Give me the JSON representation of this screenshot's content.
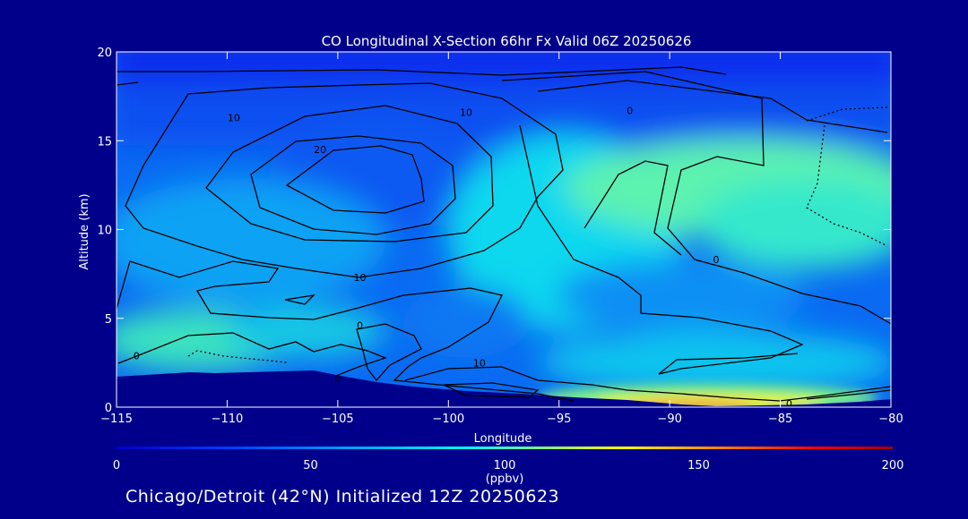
{
  "chart_data": {
    "type": "contour",
    "title": "CO Longitudinal X-Section 66hr  Fx Valid 06Z 20250626",
    "xlabel": "Longitude",
    "ylabel": "Altitude (km)",
    "x_ticks": [
      "−115",
      "−110",
      "−105",
      "−100",
      "−95",
      "−90",
      "−85",
      "−80"
    ],
    "x_values": [
      -115,
      -110,
      -105,
      -100,
      -95,
      -90,
      -85,
      -80
    ],
    "y_ticks": [
      "0",
      "5",
      "10",
      "15",
      "20"
    ],
    "y_values": [
      0,
      5,
      10,
      15,
      20
    ],
    "xlim": [
      -115,
      -80
    ],
    "ylim": [
      0,
      20
    ],
    "colorbar": {
      "ticks": [
        "0",
        "50",
        "100",
        "150",
        "200"
      ],
      "values": [
        0,
        50,
        100,
        150,
        200
      ],
      "unit_label": "(ppbv)",
      "colors": [
        "#0000c8",
        "#0040ff",
        "#00a0ff",
        "#00ffff",
        "#80ff80",
        "#ffff00",
        "#ff8000",
        "#ff0000",
        "#a00000"
      ]
    },
    "contour_labels": [
      {
        "text": "10",
        "lon": -109.7,
        "alt": 16.3
      },
      {
        "text": "20",
        "lon": -105.8,
        "alt": 14.5
      },
      {
        "text": "10",
        "lon": -99.2,
        "alt": 16.6
      },
      {
        "text": "0",
        "lon": -91.8,
        "alt": 16.7
      },
      {
        "text": "10",
        "lon": -104.0,
        "alt": 7.3
      },
      {
        "text": "0",
        "lon": -87.9,
        "alt": 8.3
      },
      {
        "text": "0",
        "lon": -104.0,
        "alt": 4.6
      },
      {
        "text": "0",
        "lon": -114.1,
        "alt": 2.9
      },
      {
        "text": "10",
        "lon": -98.6,
        "alt": 2.5
      },
      {
        "text": "0",
        "lon": -105.0,
        "alt": 1.6
      },
      {
        "text": "0",
        "lon": -84.6,
        "alt": 0.2
      }
    ]
  },
  "footer": "Chicago/Detroit (42°N) Initialized 12Z 20250623"
}
